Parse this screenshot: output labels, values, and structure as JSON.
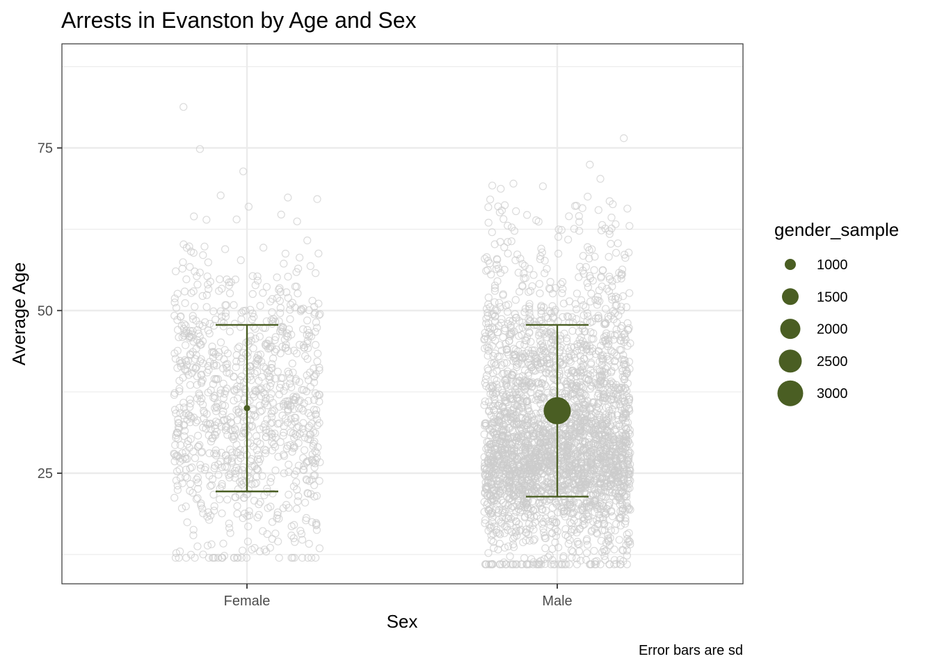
{
  "chart_data": {
    "type": "scatter",
    "title": "Arrests in Evanston by Age and Sex",
    "xlabel": "Sex",
    "ylabel": "Average Age",
    "caption": "Error bars are sd",
    "categories": [
      "Female",
      "Male"
    ],
    "ylim": [
      8,
      91
    ],
    "yticks": [
      25,
      50,
      75
    ],
    "grid": true,
    "accent_color": "#4a5e23",
    "jitter_color": "#cccccc",
    "summary": [
      {
        "category": "Female",
        "mean": 35.0,
        "sd_low": 22.2,
        "sd_high": 47.8,
        "gender_sample": 1000
      },
      {
        "category": "Male",
        "mean": 34.6,
        "sd_low": 21.4,
        "sd_high": 47.8,
        "gender_sample": 3000
      }
    ],
    "jitter": [
      {
        "category": "Female",
        "count": 1000,
        "min": 12,
        "max": 88.5
      },
      {
        "category": "Male",
        "count": 3000,
        "min": 11,
        "max": 84
      }
    ],
    "legend": {
      "title": "gender_sample",
      "placement": "right",
      "entries": [
        {
          "label": "1000",
          "value": 1000
        },
        {
          "label": "1500",
          "value": 1500
        },
        {
          "label": "2000",
          "value": 2000
        },
        {
          "label": "2500",
          "value": 2500
        },
        {
          "label": "3000",
          "value": 3000
        }
      ]
    }
  }
}
